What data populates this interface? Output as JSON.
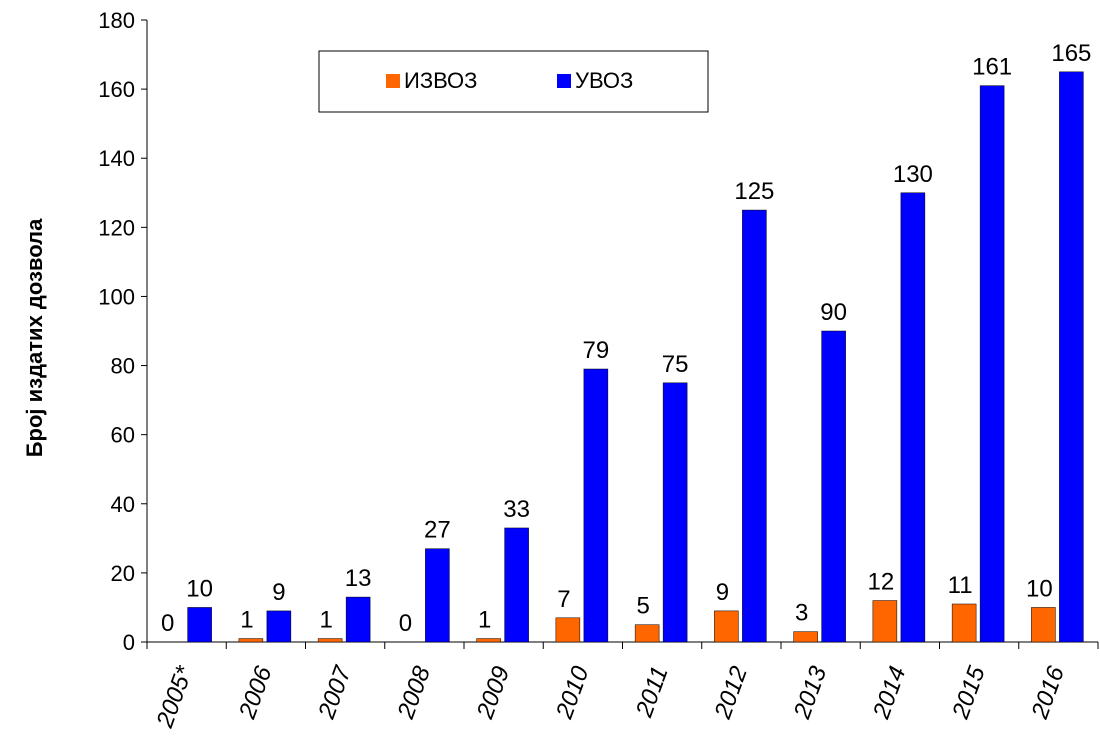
{
  "chart_data": {
    "type": "bar",
    "title": "",
    "xlabel": "",
    "ylabel": "Број издатих дозвола",
    "ylim": [
      0,
      180
    ],
    "yticks": [
      0,
      20,
      40,
      60,
      80,
      100,
      120,
      140,
      160,
      180
    ],
    "grid": false,
    "legend_position": "top-center",
    "categories": [
      "2005*",
      "2006",
      "2007",
      "2008",
      "2009",
      "2010",
      "2011",
      "2012",
      "2013",
      "2014",
      "2015",
      "2016"
    ],
    "series": [
      {
        "name": "ИЗВОЗ",
        "color": "#FF6600",
        "values": [
          0,
          1,
          1,
          0,
          1,
          7,
          5,
          9,
          3,
          12,
          11,
          10
        ]
      },
      {
        "name": "УВОЗ",
        "color": "#0000FF",
        "values": [
          10,
          9,
          13,
          27,
          33,
          79,
          75,
          125,
          90,
          130,
          161,
          165
        ]
      }
    ]
  }
}
